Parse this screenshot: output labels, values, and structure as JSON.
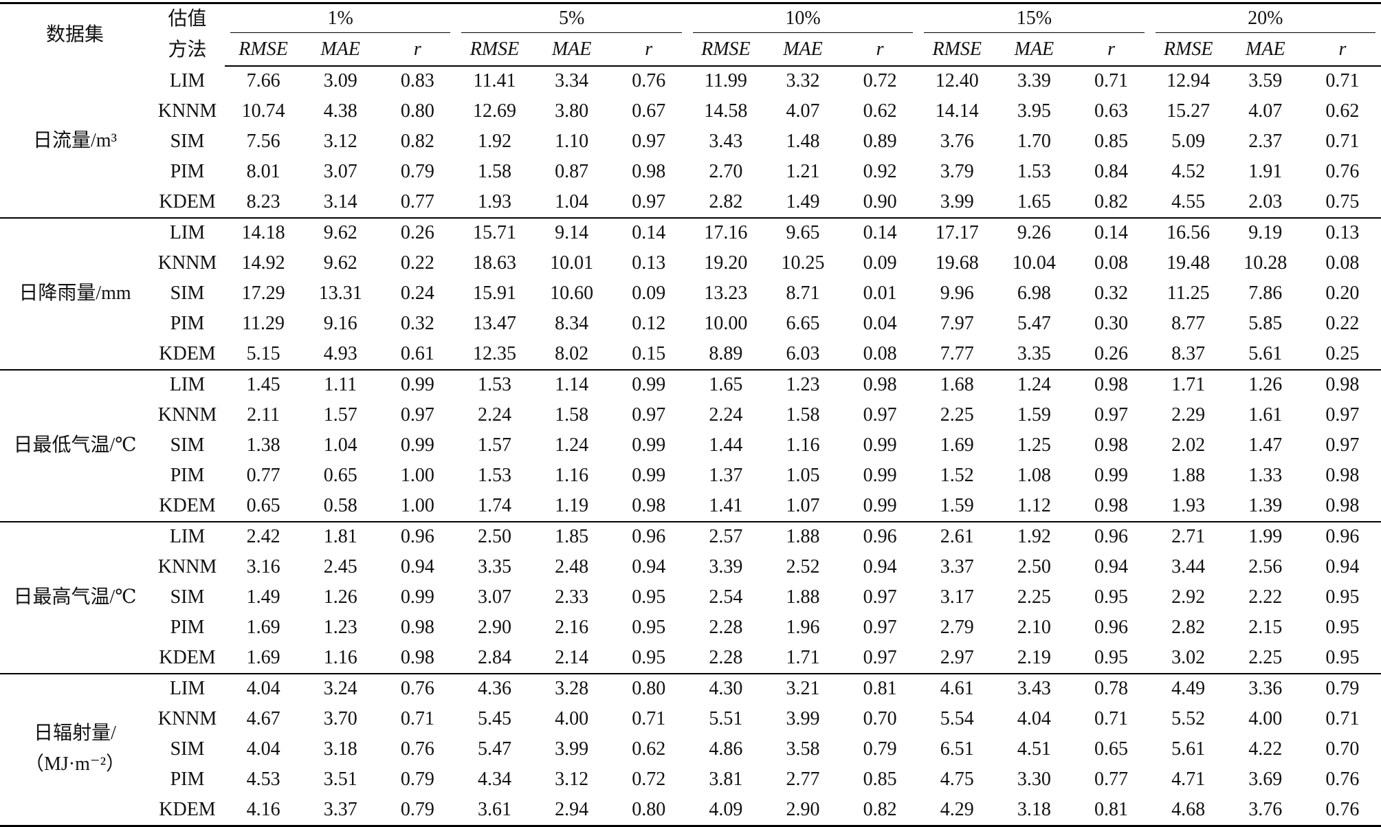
{
  "header": {
    "dataset": "数据集",
    "method": [
      "估值",
      "方法"
    ],
    "rates": [
      "1%",
      "5%",
      "10%",
      "15%",
      "20%"
    ],
    "metrics": [
      "RMSE",
      "MAE",
      "r"
    ]
  },
  "groups": [
    {
      "label": [
        "日流量/m³"
      ],
      "rows": [
        [
          "LIM",
          "7.66",
          "3.09",
          "0.83",
          "11.41",
          "3.34",
          "0.76",
          "11.99",
          "3.32",
          "0.72",
          "12.40",
          "3.39",
          "0.71",
          "12.94",
          "3.59",
          "0.71"
        ],
        [
          "KNNM",
          "10.74",
          "4.38",
          "0.80",
          "12.69",
          "3.80",
          "0.67",
          "14.58",
          "4.07",
          "0.62",
          "14.14",
          "3.95",
          "0.63",
          "15.27",
          "4.07",
          "0.62"
        ],
        [
          "SIM",
          "7.56",
          "3.12",
          "0.82",
          "1.92",
          "1.10",
          "0.97",
          "3.43",
          "1.48",
          "0.89",
          "3.76",
          "1.70",
          "0.85",
          "5.09",
          "2.37",
          "0.71"
        ],
        [
          "PIM",
          "8.01",
          "3.07",
          "0.79",
          "1.58",
          "0.87",
          "0.98",
          "2.70",
          "1.21",
          "0.92",
          "3.79",
          "1.53",
          "0.84",
          "4.52",
          "1.91",
          "0.76"
        ],
        [
          "KDEM",
          "8.23",
          "3.14",
          "0.77",
          "1.93",
          "1.04",
          "0.97",
          "2.82",
          "1.49",
          "0.90",
          "3.99",
          "1.65",
          "0.82",
          "4.55",
          "2.03",
          "0.75"
        ]
      ]
    },
    {
      "label": [
        "日降雨量/mm"
      ],
      "rows": [
        [
          "LIM",
          "14.18",
          "9.62",
          "0.26",
          "15.71",
          "9.14",
          "0.14",
          "17.16",
          "9.65",
          "0.14",
          "17.17",
          "9.26",
          "0.14",
          "16.56",
          "9.19",
          "0.13"
        ],
        [
          "KNNM",
          "14.92",
          "9.62",
          "0.22",
          "18.63",
          "10.01",
          "0.13",
          "19.20",
          "10.25",
          "0.09",
          "19.68",
          "10.04",
          "0.08",
          "19.48",
          "10.28",
          "0.08"
        ],
        [
          "SIM",
          "17.29",
          "13.31",
          "0.24",
          "15.91",
          "10.60",
          "0.09",
          "13.23",
          "8.71",
          "0.01",
          "9.96",
          "6.98",
          "0.32",
          "11.25",
          "7.86",
          "0.20"
        ],
        [
          "PIM",
          "11.29",
          "9.16",
          "0.32",
          "13.47",
          "8.34",
          "0.12",
          "10.00",
          "6.65",
          "0.04",
          "7.97",
          "5.47",
          "0.30",
          "8.77",
          "5.85",
          "0.22"
        ],
        [
          "KDEM",
          "5.15",
          "4.93",
          "0.61",
          "12.35",
          "8.02",
          "0.15",
          "8.89",
          "6.03",
          "0.08",
          "7.77",
          "3.35",
          "0.26",
          "8.37",
          "5.61",
          "0.25"
        ]
      ]
    },
    {
      "label": [
        "日最低气温/℃"
      ],
      "rows": [
        [
          "LIM",
          "1.45",
          "1.11",
          "0.99",
          "1.53",
          "1.14",
          "0.99",
          "1.65",
          "1.23",
          "0.98",
          "1.68",
          "1.24",
          "0.98",
          "1.71",
          "1.26",
          "0.98"
        ],
        [
          "KNNM",
          "2.11",
          "1.57",
          "0.97",
          "2.24",
          "1.58",
          "0.97",
          "2.24",
          "1.58",
          "0.97",
          "2.25",
          "1.59",
          "0.97",
          "2.29",
          "1.61",
          "0.97"
        ],
        [
          "SIM",
          "1.38",
          "1.04",
          "0.99",
          "1.57",
          "1.24",
          "0.99",
          "1.44",
          "1.16",
          "0.99",
          "1.69",
          "1.25",
          "0.98",
          "2.02",
          "1.47",
          "0.97"
        ],
        [
          "PIM",
          "0.77",
          "0.65",
          "1.00",
          "1.53",
          "1.16",
          "0.99",
          "1.37",
          "1.05",
          "0.99",
          "1.52",
          "1.08",
          "0.99",
          "1.88",
          "1.33",
          "0.98"
        ],
        [
          "KDEM",
          "0.65",
          "0.58",
          "1.00",
          "1.74",
          "1.19",
          "0.98",
          "1.41",
          "1.07",
          "0.99",
          "1.59",
          "1.12",
          "0.98",
          "1.93",
          "1.39",
          "0.98"
        ]
      ]
    },
    {
      "label": [
        "日最高气温/℃"
      ],
      "rows": [
        [
          "LIM",
          "2.42",
          "1.81",
          "0.96",
          "2.50",
          "1.85",
          "0.96",
          "2.57",
          "1.88",
          "0.96",
          "2.61",
          "1.92",
          "0.96",
          "2.71",
          "1.99",
          "0.96"
        ],
        [
          "KNNM",
          "3.16",
          "2.45",
          "0.94",
          "3.35",
          "2.48",
          "0.94",
          "3.39",
          "2.52",
          "0.94",
          "3.37",
          "2.50",
          "0.94",
          "3.44",
          "2.56",
          "0.94"
        ],
        [
          "SIM",
          "1.49",
          "1.26",
          "0.99",
          "3.07",
          "2.33",
          "0.95",
          "2.54",
          "1.88",
          "0.97",
          "3.17",
          "2.25",
          "0.95",
          "2.92",
          "2.22",
          "0.95"
        ],
        [
          "PIM",
          "1.69",
          "1.23",
          "0.98",
          "2.90",
          "2.16",
          "0.95",
          "2.28",
          "1.96",
          "0.97",
          "2.79",
          "2.10",
          "0.96",
          "2.82",
          "2.15",
          "0.95"
        ],
        [
          "KDEM",
          "1.69",
          "1.16",
          "0.98",
          "2.84",
          "2.14",
          "0.95",
          "2.28",
          "1.71",
          "0.97",
          "2.97",
          "2.19",
          "0.95",
          "3.02",
          "2.25",
          "0.95"
        ]
      ]
    },
    {
      "label": [
        "日辐射量/",
        "（MJ·m⁻²）"
      ],
      "rows": [
        [
          "LIM",
          "4.04",
          "3.24",
          "0.76",
          "4.36",
          "3.28",
          "0.80",
          "4.30",
          "3.21",
          "0.81",
          "4.61",
          "3.43",
          "0.78",
          "4.49",
          "3.36",
          "0.79"
        ],
        [
          "KNNM",
          "4.67",
          "3.70",
          "0.71",
          "5.45",
          "4.00",
          "0.71",
          "5.51",
          "3.99",
          "0.70",
          "5.54",
          "4.04",
          "0.71",
          "5.52",
          "4.00",
          "0.71"
        ],
        [
          "SIM",
          "4.04",
          "3.18",
          "0.76",
          "5.47",
          "3.99",
          "0.62",
          "4.86",
          "3.58",
          "0.79",
          "6.51",
          "4.51",
          "0.65",
          "5.61",
          "4.22",
          "0.70"
        ],
        [
          "PIM",
          "4.53",
          "3.51",
          "0.79",
          "4.34",
          "3.12",
          "0.72",
          "3.81",
          "2.77",
          "0.85",
          "4.75",
          "3.30",
          "0.77",
          "4.71",
          "3.69",
          "0.76"
        ],
        [
          "KDEM",
          "4.16",
          "3.37",
          "0.79",
          "3.61",
          "2.94",
          "0.80",
          "4.09",
          "2.90",
          "0.82",
          "4.29",
          "3.18",
          "0.81",
          "4.68",
          "3.76",
          "0.76"
        ]
      ]
    }
  ]
}
